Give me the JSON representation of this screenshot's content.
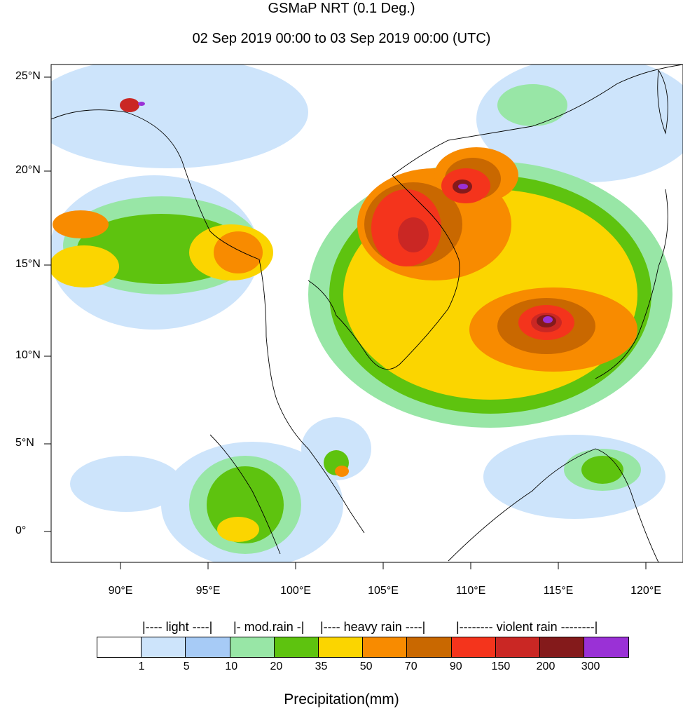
{
  "title": "GSMaP NRT (0.1 Deg.)",
  "subtitle": "02 Sep 2019 00:00 to 03 Sep 2019 00:00 (UTC)",
  "map": {
    "lat_labels": [
      "25°N",
      "20°N",
      "15°N",
      "10°N",
      "5°N",
      "0°"
    ],
    "lon_labels": [
      "90°E",
      "95°E",
      "100°E",
      "105°E",
      "110°E",
      "115°E",
      "120°E"
    ],
    "lat_range": [
      -1.7,
      26.0
    ],
    "lon_range": [
      86.0,
      122.0
    ]
  },
  "legend": {
    "categories": [
      "|---- light ----|",
      "|- mod.rain -|",
      "|---- heavy rain ----|",
      "|-------- violent rain --------|"
    ],
    "ticks": [
      "1",
      "5",
      "10",
      "20",
      "35",
      "50",
      "70",
      "90",
      "150",
      "200",
      "300"
    ],
    "colors": [
      "#ffffff",
      "#cde4fb",
      "#a7cbf6",
      "#98e6a6",
      "#5ec30f",
      "#fbd500",
      "#f88b00",
      "#c96800",
      "#f4341c",
      "#ca2724",
      "#841a1b",
      "#9a31d6"
    ],
    "title": "Precipitation(mm)"
  }
}
